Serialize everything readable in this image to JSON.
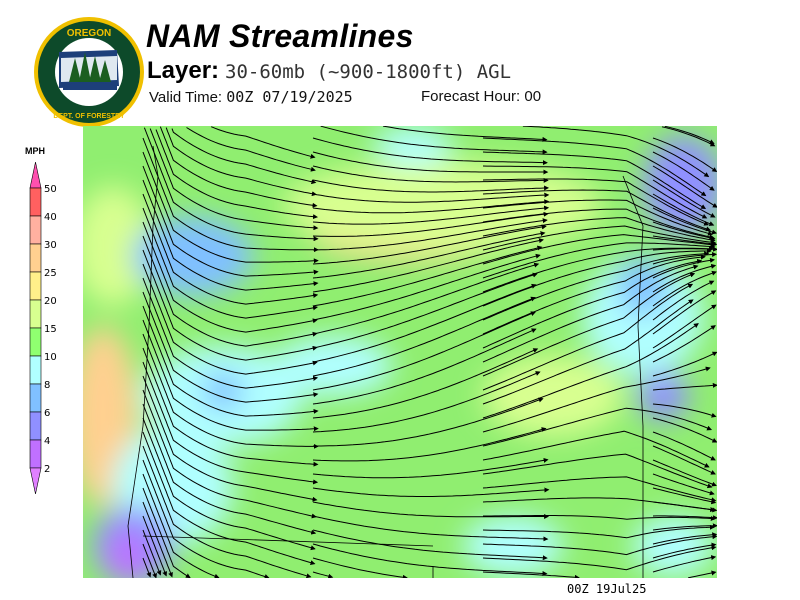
{
  "header": {
    "title": "NAM Streamlines",
    "layer_label": "Layer:",
    "layer_value": "30-60mb (~900-1800ft) AGL",
    "valid_label": "Valid Time:",
    "valid_value": "00Z 07/19/2025",
    "forecast_label": "Forecast Hour:",
    "forecast_value": "00"
  },
  "logo": {
    "text_top": "OREGON",
    "text_bottom": "DEPARTMENT OF FORESTRY"
  },
  "colorbar": {
    "unit": "MPH",
    "labels": [
      "50",
      "40",
      "30",
      "25",
      "20",
      "15",
      "10",
      "8",
      "6",
      "4",
      "2"
    ],
    "colors": [
      "#ff6060",
      "#ffb0a0",
      "#ffd090",
      "#fff08a",
      "#d8ff90",
      "#90ff70",
      "#b0ffff",
      "#80c0ff",
      "#9090ff",
      "#c070ff"
    ],
    "top_arrow_color": "#ff50b0",
    "bottom_arrow_color": "#e080ff"
  },
  "map": {
    "background_color": "#90ee70"
  },
  "footer": {
    "timestamp": "00Z 19Jul25"
  }
}
